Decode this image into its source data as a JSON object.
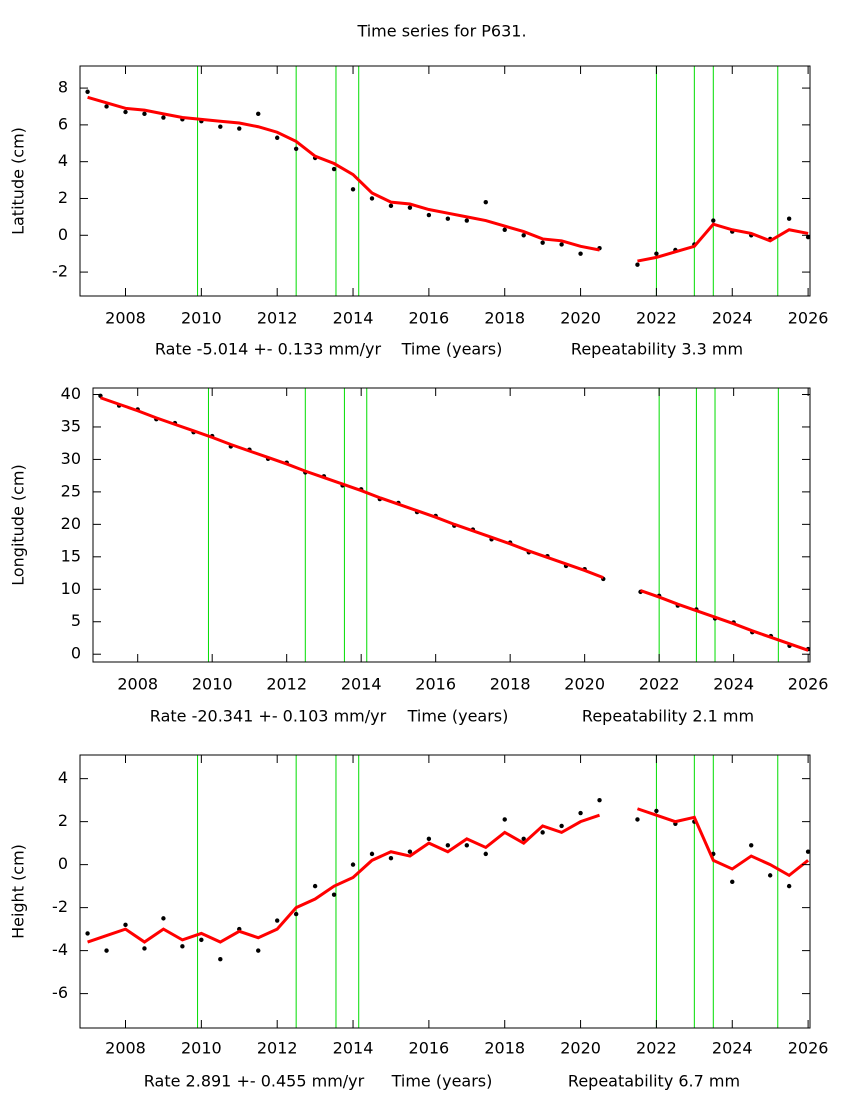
{
  "title": "Time series for P631.",
  "chart_data": [
    {
      "type": "scatter-line",
      "ylabel": "Latitude (cm)",
      "xlabel": "Time (years)",
      "rate_label": "Rate -5.014 +- 0.133 mm/yr",
      "repeatability_label": "Repeatability 3.3 mm",
      "xlim": [
        2006.8,
        2026.05
      ],
      "xticks": [
        2008,
        2010,
        2012,
        2014,
        2016,
        2018,
        2020,
        2022,
        2024,
        2026
      ],
      "ylim": [
        -3.3,
        9.2
      ],
      "yticks": [
        -2,
        0,
        2,
        4,
        6,
        8
      ],
      "events": [
        2009.9,
        2012.5,
        2013.55,
        2014.15,
        2022.0,
        2023.0,
        2023.5,
        2025.2
      ],
      "event_color": "#00dd00",
      "x": [
        2007,
        2007.5,
        2008,
        2008.5,
        2009,
        2009.5,
        2010,
        2010.5,
        2011,
        2011.5,
        2012,
        2012.5,
        2013,
        2013.5,
        2014,
        2014.5,
        2015,
        2015.5,
        2016,
        2016.5,
        2017,
        2017.5,
        2018,
        2018.5,
        2019,
        2019.5,
        2020,
        2020.5,
        2021,
        2021.5,
        2022,
        2022.5,
        2023,
        2023.5,
        2024,
        2024.5,
        2025,
        2025.5,
        2026
      ],
      "series": [
        {
          "color": "#000000",
          "style": "points",
          "values": [
            7.8,
            7.0,
            6.7,
            6.6,
            6.4,
            6.3,
            6.2,
            5.9,
            5.8,
            6.6,
            5.3,
            4.7,
            4.2,
            3.6,
            2.5,
            2.0,
            1.6,
            1.5,
            1.1,
            0.9,
            0.8,
            1.8,
            0.3,
            0.0,
            -0.4,
            -0.5,
            -1.0,
            -0.7,
            null,
            -1.6,
            -1.0,
            -0.8,
            -0.5,
            0.8,
            0.2,
            0.0,
            -0.2,
            0.9,
            -0.1
          ]
        },
        {
          "color": "#ff0000",
          "style": "line",
          "values": [
            7.5,
            7.2,
            6.9,
            6.8,
            6.6,
            6.4,
            6.3,
            6.2,
            6.1,
            5.9,
            5.6,
            5.1,
            4.3,
            3.9,
            3.3,
            2.3,
            1.8,
            1.7,
            1.4,
            1.2,
            1.0,
            0.8,
            0.5,
            0.2,
            -0.2,
            -0.3,
            -0.6,
            -0.8,
            null,
            -1.4,
            -1.2,
            -0.9,
            -0.6,
            0.6,
            0.3,
            0.1,
            -0.3,
            0.3,
            0.1
          ]
        }
      ]
    },
    {
      "type": "scatter-line",
      "ylabel": "Longitude (cm)",
      "xlabel": "Time (years)",
      "rate_label": "Rate -20.341 +- 0.103 mm/yr",
      "repeatability_label": "Repeatability 2.1 mm",
      "xlim": [
        2006.8,
        2026.05
      ],
      "xticks": [
        2008,
        2010,
        2012,
        2014,
        2016,
        2018,
        2020,
        2022,
        2024,
        2026
      ],
      "ylim": [
        -1.2,
        41
      ],
      "yticks": [
        0,
        5,
        10,
        15,
        20,
        25,
        30,
        35,
        40
      ],
      "events": [
        2009.9,
        2012.5,
        2013.55,
        2014.15,
        2022.0,
        2023.0,
        2023.5,
        2025.2
      ],
      "event_color": "#00dd00",
      "x": [
        2007,
        2007.5,
        2008,
        2008.5,
        2009,
        2009.5,
        2010,
        2010.5,
        2011,
        2011.5,
        2012,
        2012.5,
        2013,
        2013.5,
        2014,
        2014.5,
        2015,
        2015.5,
        2016,
        2016.5,
        2017,
        2017.5,
        2018,
        2018.5,
        2019,
        2019.5,
        2020,
        2020.5,
        2021,
        2021.5,
        2022,
        2022.5,
        2023,
        2023.5,
        2024,
        2024.5,
        2025,
        2025.5,
        2026
      ],
      "series": [
        {
          "color": "#000000",
          "style": "points",
          "values": [
            39.8,
            38.3,
            37.7,
            36.2,
            35.6,
            34.2,
            33.6,
            32.0,
            31.5,
            30.1,
            29.5,
            28.0,
            27.4,
            26.0,
            25.4,
            23.9,
            23.3,
            21.9,
            21.3,
            19.8,
            19.2,
            17.7,
            17.2,
            15.7,
            15.1,
            13.6,
            13.1,
            11.6,
            null,
            9.6,
            9.0,
            7.5,
            6.9,
            5.5,
            4.9,
            3.4,
            2.8,
            1.3,
            0.8
          ]
        },
        {
          "color": "#ff0000",
          "style": "line",
          "values": [
            39.5,
            38.5,
            37.5,
            36.4,
            35.4,
            34.4,
            33.4,
            32.3,
            31.3,
            30.3,
            29.3,
            28.2,
            27.2,
            26.2,
            25.2,
            24.1,
            23.1,
            22.1,
            21.1,
            20.0,
            19.0,
            18.0,
            17.0,
            15.9,
            14.9,
            13.9,
            12.9,
            11.8,
            null,
            9.8,
            8.8,
            7.7,
            6.7,
            5.7,
            4.7,
            3.6,
            2.6,
            1.6,
            0.6
          ]
        }
      ]
    },
    {
      "type": "scatter-line",
      "ylabel": "Height (cm)",
      "xlabel": "Time (years)",
      "rate_label": "Rate 2.891 +- 0.455 mm/yr",
      "repeatability_label": "Repeatability 6.7 mm",
      "xlim": [
        2006.8,
        2026.05
      ],
      "xticks": [
        2008,
        2010,
        2012,
        2014,
        2016,
        2018,
        2020,
        2022,
        2024,
        2026
      ],
      "ylim": [
        -7.6,
        5.1
      ],
      "yticks": [
        -6,
        -4,
        -2,
        0,
        2,
        4
      ],
      "events": [
        2009.9,
        2012.5,
        2013.55,
        2014.15,
        2022.0,
        2023.0,
        2023.5,
        2025.2
      ],
      "event_color": "#00dd00",
      "x": [
        2007,
        2007.5,
        2008,
        2008.5,
        2009,
        2009.5,
        2010,
        2010.5,
        2011,
        2011.5,
        2012,
        2012.5,
        2013,
        2013.5,
        2014,
        2014.5,
        2015,
        2015.5,
        2016,
        2016.5,
        2017,
        2017.5,
        2018,
        2018.5,
        2019,
        2019.5,
        2020,
        2020.5,
        2021,
        2021.5,
        2022,
        2022.5,
        2023,
        2023.5,
        2024,
        2024.5,
        2025,
        2025.5,
        2026
      ],
      "series": [
        {
          "color": "#000000",
          "style": "points",
          "values": [
            -3.2,
            -4.0,
            -2.8,
            -3.9,
            -2.5,
            -3.8,
            -3.5,
            -4.4,
            -3.0,
            -4.0,
            -2.6,
            -2.3,
            -1.0,
            -1.4,
            0.0,
            0.5,
            0.3,
            0.6,
            1.2,
            0.9,
            0.9,
            0.5,
            2.1,
            1.2,
            1.5,
            1.8,
            2.4,
            3.0,
            null,
            2.1,
            2.5,
            1.9,
            2.0,
            0.5,
            -0.8,
            0.9,
            -0.5,
            -1.0,
            0.6
          ]
        },
        {
          "color": "#ff0000",
          "style": "line",
          "values": [
            -3.6,
            -3.3,
            -3.0,
            -3.6,
            -3.0,
            -3.5,
            -3.2,
            -3.6,
            -3.1,
            -3.4,
            -3.0,
            -2.0,
            -1.6,
            -1.0,
            -0.6,
            0.2,
            0.6,
            0.4,
            1.0,
            0.6,
            1.2,
            0.8,
            1.5,
            1.0,
            1.8,
            1.5,
            2.0,
            2.3,
            null,
            2.6,
            2.3,
            2.0,
            2.2,
            0.2,
            -0.2,
            0.4,
            0.0,
            -0.5,
            0.2
          ]
        }
      ]
    }
  ]
}
